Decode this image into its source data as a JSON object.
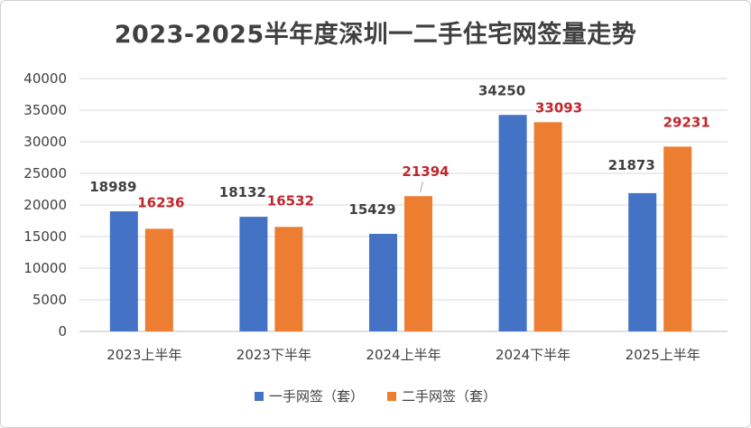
{
  "chart_data": {
    "type": "bar",
    "title": "2023-2025半年度深圳一二手住宅网签量走势",
    "categories": [
      "2023上半年",
      "2023下半年",
      "2024上半年",
      "2024下半年",
      "2025上半年"
    ],
    "series": [
      {
        "name": "一手网签（套）",
        "color": "#4472C4",
        "label_color": "#404040",
        "values": [
          18989,
          18132,
          15429,
          34250,
          21873
        ]
      },
      {
        "name": "二手网签（套）",
        "color": "#ED7D31",
        "label_color": "#C0272D",
        "values": [
          16236,
          16532,
          21394,
          33093,
          29231
        ]
      }
    ],
    "ylim": [
      0,
      40000
    ],
    "yticks": [
      0,
      5000,
      10000,
      15000,
      20000,
      25000,
      30000,
      35000,
      40000
    ],
    "grid": true,
    "legend_position": "bottom"
  }
}
